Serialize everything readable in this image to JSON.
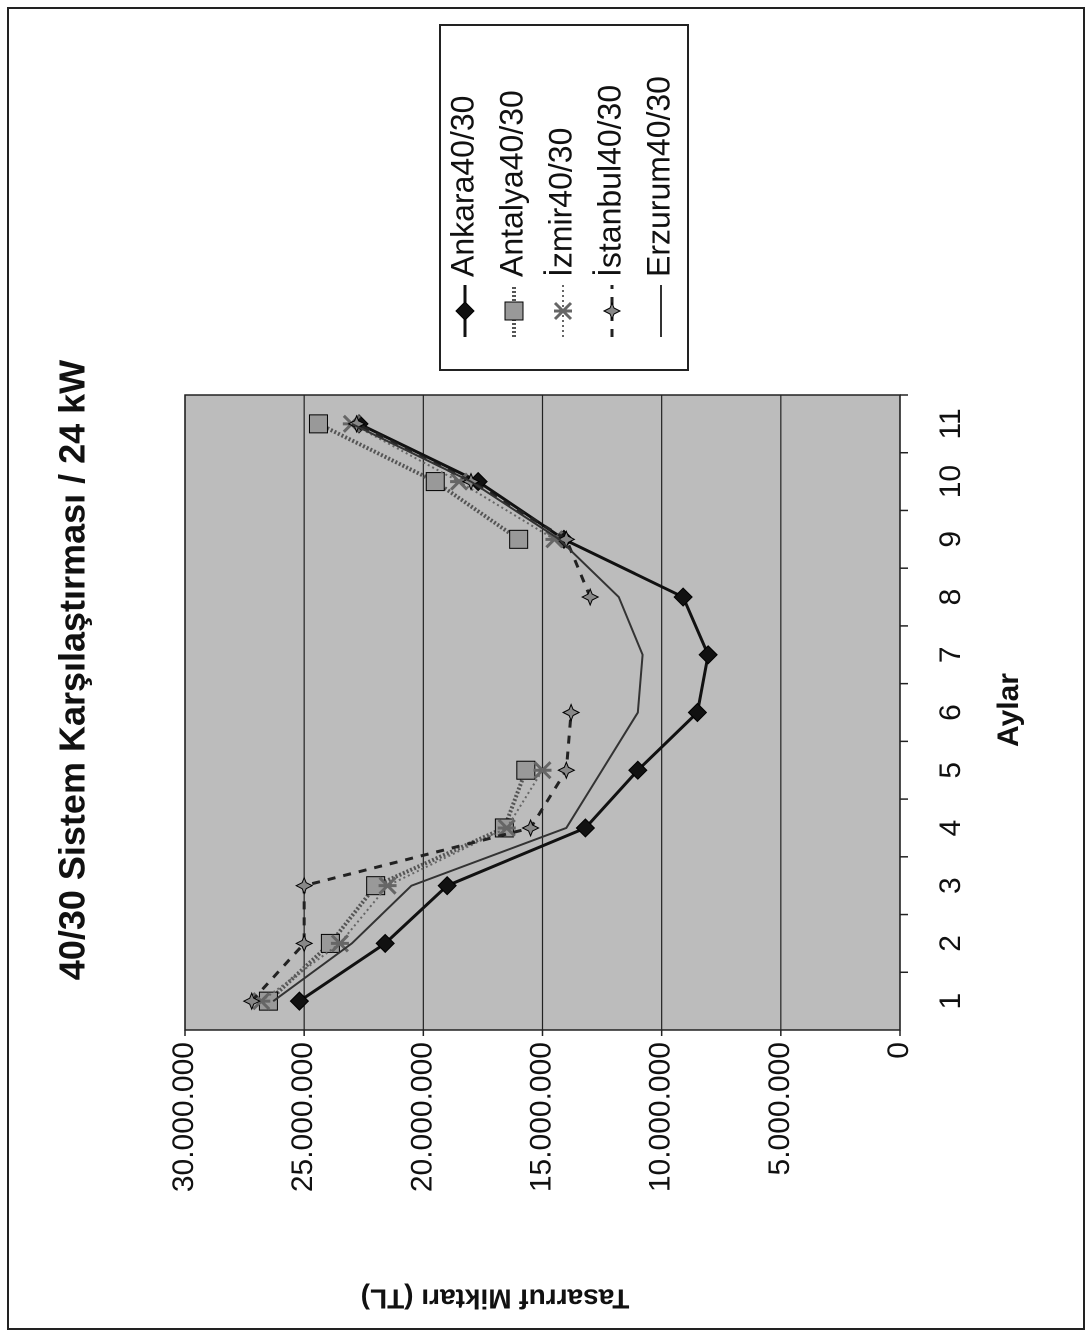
{
  "chart_data": {
    "type": "line",
    "title": "40/30 Sistem Karşılaştırması / 24 kW",
    "x_label": "Aylar",
    "y_label": "Tasarruf Miktarı (TL)",
    "categories": [
      "1",
      "2",
      "3",
      "4",
      "5",
      "6",
      "7",
      "8",
      "9",
      "10",
      "11"
    ],
    "series": [
      {
        "name": "Ankara40/30",
        "color": "#111111",
        "marker": "diamond",
        "dash": "none",
        "width": 3,
        "values": [
          25200000,
          21600000,
          19000000,
          13200000,
          11000000,
          8500000,
          8050000,
          9100000,
          14100000,
          17700000,
          22700000
        ]
      },
      {
        "name": "Antalya40/30",
        "color": "#555555",
        "marker": "square",
        "dash": "2 2",
        "width": 4,
        "values": [
          26500000,
          23900000,
          22000000,
          16600000,
          15700000,
          null,
          null,
          null,
          16000000,
          19500000,
          24400000
        ]
      },
      {
        "name": "İzmir40/30",
        "color": "#666666",
        "marker": "cross",
        "dash": "2 3",
        "width": 2,
        "values": [
          26800000,
          23500000,
          21500000,
          16500000,
          15000000,
          null,
          null,
          null,
          14500000,
          18500000,
          23000000
        ]
      },
      {
        "name": "İstanbul40/30",
        "color": "#222222",
        "marker": "star",
        "dash": "8 8",
        "width": 3,
        "values": [
          27200000,
          25000000,
          25000000,
          15500000,
          14000000,
          13800000,
          null,
          13000000,
          14000000,
          18000000,
          22800000
        ]
      },
      {
        "name": "Erzurum40/30",
        "color": "#333333",
        "marker": "none",
        "dash": "none",
        "width": 2,
        "values": [
          26300000,
          23000000,
          20500000,
          14000000,
          12500000,
          11000000,
          10800000,
          11800000,
          14300000,
          18000000,
          23000000
        ]
      }
    ],
    "ylim": [
      0,
      30000000
    ],
    "yticks": [
      0,
      {
        "value": 5000000,
        "label": "5.000.000"
      },
      {
        "value": 10000000,
        "label": "10.000.000"
      },
      {
        "value": 15000000,
        "label": "15.000.000"
      },
      {
        "value": 20000000,
        "label": "20.000.000"
      },
      {
        "value": 25000000,
        "label": "25.000.000"
      },
      {
        "value": 30000000,
        "label": "30.000.000"
      }
    ],
    "grid": true,
    "plot_background": "#bcbcbc",
    "rotation": -90
  }
}
